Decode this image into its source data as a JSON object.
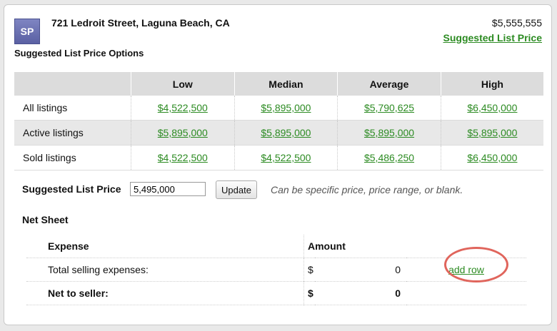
{
  "header": {
    "avatar_initials": "SP",
    "address": "721 Ledroit Street, Laguna Beach, CA",
    "price": "$5,555,555",
    "suggested_link": "Suggested List Price"
  },
  "options": {
    "title": "Suggested List Price Options",
    "columns": [
      "Low",
      "Median",
      "Average",
      "High"
    ],
    "rows": [
      {
        "label": "All listings",
        "values": [
          "$4,522,500",
          "$5,895,000",
          "$5,790,625",
          "$6,450,000"
        ]
      },
      {
        "label": "Active listings",
        "values": [
          "$5,895,000",
          "$5,895,000",
          "$5,895,000",
          "$5,895,000"
        ]
      },
      {
        "label": "Sold listings",
        "values": [
          "$4,522,500",
          "$4,522,500",
          "$5,486,250",
          "$6,450,000"
        ]
      }
    ]
  },
  "suggested_price": {
    "label": "Suggested List Price",
    "value": "5,495,000",
    "update_label": "Update",
    "hint": "Can be specific price, price range, or blank."
  },
  "net_sheet": {
    "title": "Net Sheet",
    "col_expense": "Expense",
    "col_amount": "Amount",
    "rows": [
      {
        "label": "Total selling expenses:",
        "currency": "$",
        "amount": "0",
        "action": "add row"
      },
      {
        "label": "Net to seller:",
        "currency": "$",
        "amount": "0"
      }
    ]
  },
  "colors": {
    "link": "#2c8b22",
    "highlight": "#e0655c"
  }
}
